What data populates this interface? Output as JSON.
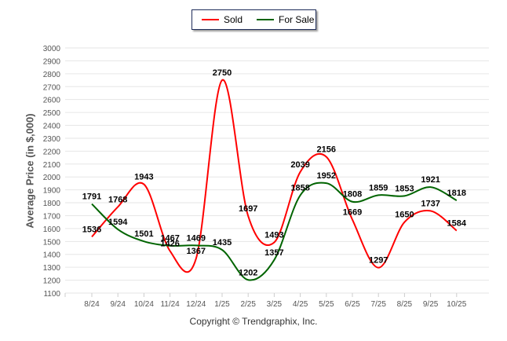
{
  "chart_data": {
    "type": "line",
    "title": "",
    "xlabel": "",
    "ylabel": "Average Price (in $,000)",
    "ylim": [
      1100,
      3000
    ],
    "ytick_step": 100,
    "grid": true,
    "legend_position": "top-center",
    "categories": [
      "8/24",
      "9/24",
      "10/24",
      "11/24",
      "12/24",
      "1/25",
      "2/25",
      "3/25",
      "4/25",
      "5/25",
      "6/25",
      "7/25",
      "8/25",
      "9/25",
      "10/25"
    ],
    "series": [
      {
        "name": "Sold",
        "color": "#ff0000",
        "values": [
          1536,
          1768,
          1943,
          1426,
          1367,
          2750,
          1697,
          1493,
          2039,
          2156,
          1669,
          1297,
          1650,
          1737,
          1584
        ]
      },
      {
        "name": "For Sale",
        "color": "#006400",
        "values": [
          1791,
          1594,
          1501,
          1467,
          1469,
          1435,
          1202,
          1357,
          1858,
          1952,
          1808,
          1859,
          1853,
          1921,
          1818
        ]
      }
    ]
  },
  "footer": {
    "copyright": "Copyright © Trendgraphix, Inc."
  }
}
